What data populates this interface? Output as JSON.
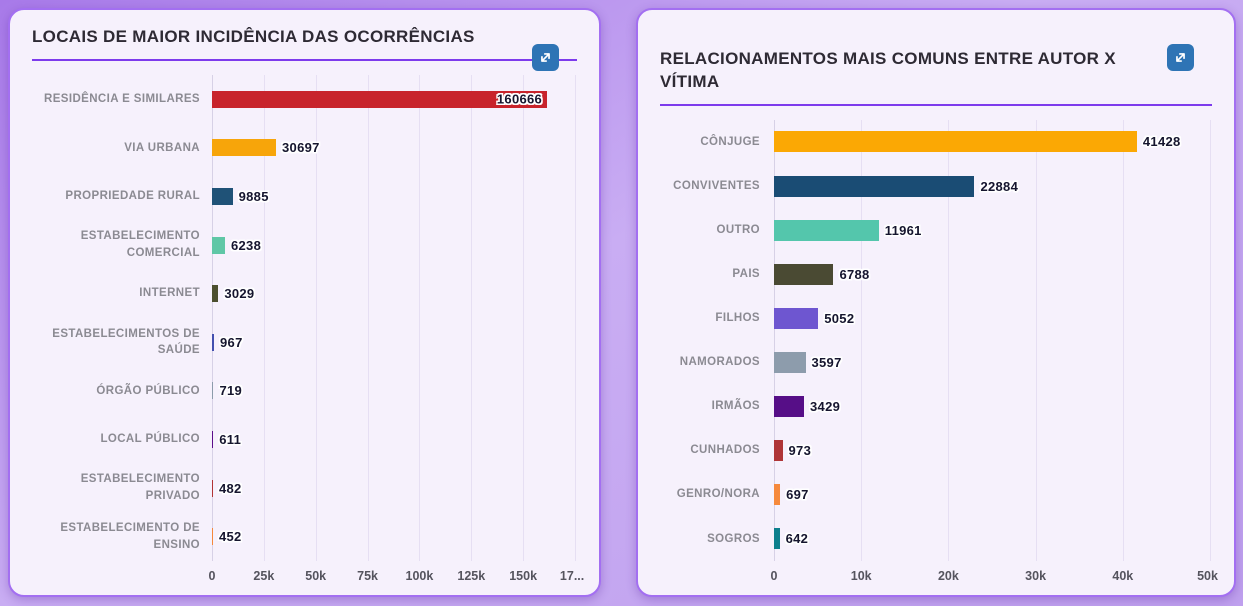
{
  "ui": {
    "page_background": "#bfa0ee",
    "card_background": "#f6f1fc",
    "card_border_color": "#a36ff1",
    "accent_underline_color": "#7d3bec",
    "expand_button": {
      "icon": "expand-diagonal-arrows-icon",
      "color": "#2e74b5",
      "glyph_color": "#ffffff"
    },
    "value_label_style": {
      "text_color": "#15152e",
      "outline_color": "#ffffff"
    }
  },
  "chart_data": [
    {
      "type": "bar",
      "orientation": "horizontal",
      "title": "LOCAIS DE MAIOR INCIDÊNCIA DAS OCORRÊNCIAS",
      "categories": [
        "RESIDÊNCIA E SIMILARES",
        "VIA URBANA",
        "PROPRIEDADE RURAL",
        "ESTABELECIMENTO COMERCIAL",
        "INTERNET",
        "ESTABELECIMENTOS DE SAÚDE",
        "ÓRGÃO PÚBLICO",
        "LOCAL PÚBLICO",
        "ESTABELECIMENTO PRIVADO",
        "ESTABELECIMENTO DE ENSINO"
      ],
      "values": [
        160666,
        30697,
        9885,
        6238,
        3029,
        967,
        719,
        611,
        482,
        452
      ],
      "value_labels": [
        "160666",
        "30697",
        "9885",
        "6238",
        "3029",
        "967",
        "719",
        "611",
        "482",
        "452"
      ],
      "colors": [
        "#c8242c",
        "#f7a50a",
        "#1f5277",
        "#5fc7a6",
        "#4c4f2e",
        "#4350af",
        "#8c9bab",
        "#5c0e8b",
        "#b13434",
        "#f5883b"
      ],
      "xlim": [
        0,
        175000
      ],
      "x_ticks": [
        {
          "value": 0,
          "label": "0"
        },
        {
          "value": 25000,
          "label": "25k"
        },
        {
          "value": 50000,
          "label": "50k"
        },
        {
          "value": 75000,
          "label": "75k"
        },
        {
          "value": 100000,
          "label": "100k"
        },
        {
          "value": 125000,
          "label": "125k"
        },
        {
          "value": 150000,
          "label": "150k"
        },
        {
          "value": 175000,
          "label": "17..."
        }
      ],
      "grid": true,
      "legend": false
    },
    {
      "type": "bar",
      "orientation": "horizontal",
      "title": "RELACIONAMENTOS MAIS COMUNS ENTRE AUTOR X VÍTIMA",
      "categories": [
        "CÔNJUGE",
        "CONVIVENTES",
        "OUTRO",
        "PAIS",
        "FILHOS",
        "NAMORADOS",
        "IRMÃOS",
        "CUNHADOS",
        "GENRO/NORA",
        "SOGROS"
      ],
      "values": [
        41428,
        22884,
        11961,
        6788,
        5052,
        3597,
        3429,
        973,
        697,
        642
      ],
      "value_labels": [
        "41428",
        "22884",
        "11961",
        "6788",
        "5052",
        "3597",
        "3429",
        "973",
        "697",
        "642"
      ],
      "colors": [
        "#fba804",
        "#1a4c74",
        "#54c6ac",
        "#4a4a33",
        "#6e56d0",
        "#8d9cac",
        "#560e87",
        "#af3537",
        "#f6893c",
        "#0d7f8d"
      ],
      "xlim": [
        0,
        50000
      ],
      "x_ticks": [
        {
          "value": 0,
          "label": "0"
        },
        {
          "value": 10000,
          "label": "10k"
        },
        {
          "value": 20000,
          "label": "20k"
        },
        {
          "value": 30000,
          "label": "30k"
        },
        {
          "value": 40000,
          "label": "40k"
        },
        {
          "value": 50000,
          "label": "50k"
        }
      ],
      "grid": true,
      "legend": false
    }
  ]
}
